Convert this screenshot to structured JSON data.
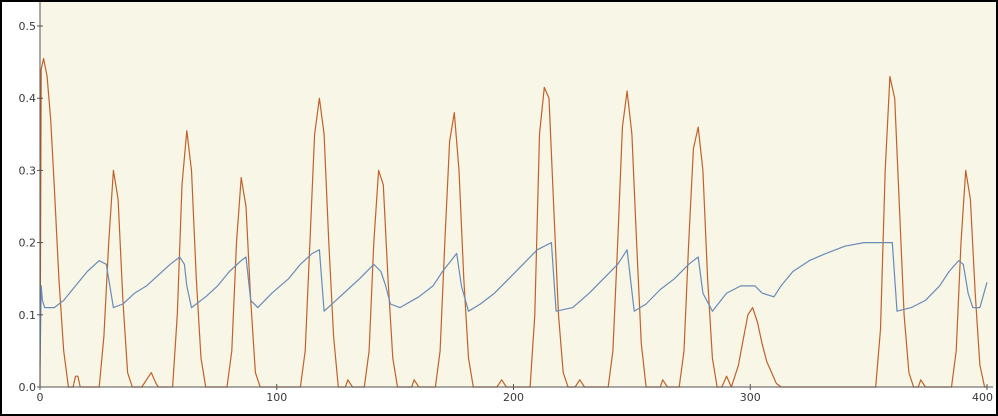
{
  "colors": {
    "plot_background": "#f8f6e6",
    "axis": "#555555",
    "tick_label": "#3a3a3a"
  },
  "chart_data": {
    "type": "line",
    "title": "",
    "xlabel": "",
    "ylabel": "",
    "xlim": [
      0,
      400
    ],
    "ylim": [
      0,
      0.5
    ],
    "x_ticks": [
      0,
      100,
      200,
      300,
      400
    ],
    "x_tick_labels": [
      "0",
      "100",
      "200",
      "300",
      "400"
    ],
    "y_ticks": [
      0.0,
      0.1,
      0.2,
      0.3,
      0.4,
      0.5
    ],
    "y_tick_labels": [
      "0.0",
      "0.1",
      "0.2",
      "0.3",
      "0.4",
      "0.5"
    ],
    "grid": false,
    "series": [
      {
        "color": "#c0622a",
        "points": [
          [
            0,
            0.0
          ],
          [
            0.5,
            0.44
          ],
          [
            1.5,
            0.455
          ],
          [
            3,
            0.43
          ],
          [
            4.5,
            0.37
          ],
          [
            6,
            0.28
          ],
          [
            8,
            0.15
          ],
          [
            10,
            0.05
          ],
          [
            12,
            0.0
          ],
          [
            14,
            0.0
          ],
          [
            15,
            0.015
          ],
          [
            16,
            0.015
          ],
          [
            17,
            0.0
          ],
          [
            25,
            0.0
          ],
          [
            27,
            0.07
          ],
          [
            29,
            0.2
          ],
          [
            31,
            0.3
          ],
          [
            33,
            0.26
          ],
          [
            35,
            0.12
          ],
          [
            37,
            0.02
          ],
          [
            39,
            0.0
          ],
          [
            43,
            0.0
          ],
          [
            45,
            0.01
          ],
          [
            47,
            0.02
          ],
          [
            49,
            0.005
          ],
          [
            50,
            0.0
          ],
          [
            56,
            0.0
          ],
          [
            58,
            0.1
          ],
          [
            60,
            0.28
          ],
          [
            62,
            0.355
          ],
          [
            64,
            0.3
          ],
          [
            66,
            0.15
          ],
          [
            68,
            0.04
          ],
          [
            70,
            0.0
          ],
          [
            79,
            0.0
          ],
          [
            81,
            0.05
          ],
          [
            83,
            0.2
          ],
          [
            85,
            0.29
          ],
          [
            87,
            0.25
          ],
          [
            89,
            0.12
          ],
          [
            91,
            0.02
          ],
          [
            93,
            0.0
          ],
          [
            110,
            0.0
          ],
          [
            112,
            0.05
          ],
          [
            114,
            0.2
          ],
          [
            116,
            0.35
          ],
          [
            118,
            0.4
          ],
          [
            120,
            0.35
          ],
          [
            122,
            0.2
          ],
          [
            124,
            0.07
          ],
          [
            126,
            0.0
          ],
          [
            129,
            0.0
          ],
          [
            130,
            0.01
          ],
          [
            132,
            0.0
          ],
          [
            137,
            0.0
          ],
          [
            139,
            0.05
          ],
          [
            141,
            0.2
          ],
          [
            143,
            0.3
          ],
          [
            145,
            0.28
          ],
          [
            147,
            0.15
          ],
          [
            149,
            0.04
          ],
          [
            151,
            0.0
          ],
          [
            157,
            0.0
          ],
          [
            158,
            0.01
          ],
          [
            160,
            0.0
          ],
          [
            167,
            0.0
          ],
          [
            169,
            0.05
          ],
          [
            171,
            0.2
          ],
          [
            173,
            0.34
          ],
          [
            175,
            0.38
          ],
          [
            177,
            0.3
          ],
          [
            179,
            0.15
          ],
          [
            181,
            0.04
          ],
          [
            183,
            0.0
          ],
          [
            193,
            0.0
          ],
          [
            195,
            0.01
          ],
          [
            197,
            0.0
          ],
          [
            207,
            0.0
          ],
          [
            209,
            0.1
          ],
          [
            211,
            0.35
          ],
          [
            213,
            0.415
          ],
          [
            215,
            0.4
          ],
          [
            217,
            0.25
          ],
          [
            219,
            0.1
          ],
          [
            221,
            0.02
          ],
          [
            223,
            0.0
          ],
          [
            226,
            0.0
          ],
          [
            228,
            0.01
          ],
          [
            230,
            0.0
          ],
          [
            240,
            0.0
          ],
          [
            242,
            0.05
          ],
          [
            244,
            0.2
          ],
          [
            246,
            0.36
          ],
          [
            248,
            0.41
          ],
          [
            250,
            0.35
          ],
          [
            252,
            0.2
          ],
          [
            254,
            0.06
          ],
          [
            256,
            0.0
          ],
          [
            262,
            0.0
          ],
          [
            263,
            0.01
          ],
          [
            265,
            0.0
          ],
          [
            270,
            0.0
          ],
          [
            272,
            0.05
          ],
          [
            274,
            0.2
          ],
          [
            276,
            0.33
          ],
          [
            278,
            0.36
          ],
          [
            280,
            0.3
          ],
          [
            282,
            0.15
          ],
          [
            284,
            0.04
          ],
          [
            286,
            0.0
          ],
          [
            288,
            0.0
          ],
          [
            290,
            0.015
          ],
          [
            292,
            0.0
          ],
          [
            293,
            0.01
          ],
          [
            295,
            0.03
          ],
          [
            297,
            0.065
          ],
          [
            299,
            0.1
          ],
          [
            301,
            0.11
          ],
          [
            303,
            0.09
          ],
          [
            305,
            0.06
          ],
          [
            307,
            0.035
          ],
          [
            309,
            0.02
          ],
          [
            311,
            0.005
          ],
          [
            313,
            0.0
          ],
          [
            353,
            0.0
          ],
          [
            355,
            0.08
          ],
          [
            357,
            0.3
          ],
          [
            359,
            0.43
          ],
          [
            361,
            0.4
          ],
          [
            363,
            0.25
          ],
          [
            365,
            0.1
          ],
          [
            367,
            0.02
          ],
          [
            369,
            0.0
          ],
          [
            371,
            0.0
          ],
          [
            372,
            0.01
          ],
          [
            374,
            0.0
          ],
          [
            385,
            0.0
          ],
          [
            387,
            0.05
          ],
          [
            389,
            0.2
          ],
          [
            391,
            0.3
          ],
          [
            393,
            0.26
          ],
          [
            395,
            0.13
          ],
          [
            397,
            0.03
          ],
          [
            399,
            0.0
          ],
          [
            400,
            0.0
          ]
        ]
      },
      {
        "color": "#6a8bb8",
        "points": [
          [
            0,
            0.03
          ],
          [
            0.5,
            0.14
          ],
          [
            1,
            0.12
          ],
          [
            2,
            0.11
          ],
          [
            6,
            0.11
          ],
          [
            10,
            0.12
          ],
          [
            15,
            0.14
          ],
          [
            20,
            0.16
          ],
          [
            25,
            0.175
          ],
          [
            28,
            0.17
          ],
          [
            31,
            0.11
          ],
          [
            35,
            0.115
          ],
          [
            40,
            0.13
          ],
          [
            45,
            0.14
          ],
          [
            50,
            0.155
          ],
          [
            55,
            0.17
          ],
          [
            59,
            0.18
          ],
          [
            61,
            0.17
          ],
          [
            62,
            0.14
          ],
          [
            64,
            0.11
          ],
          [
            70,
            0.125
          ],
          [
            75,
            0.14
          ],
          [
            80,
            0.16
          ],
          [
            85,
            0.175
          ],
          [
            87,
            0.18
          ],
          [
            89,
            0.12
          ],
          [
            92,
            0.11
          ],
          [
            98,
            0.13
          ],
          [
            105,
            0.15
          ],
          [
            110,
            0.17
          ],
          [
            115,
            0.185
          ],
          [
            118,
            0.19
          ],
          [
            120,
            0.105
          ],
          [
            125,
            0.12
          ],
          [
            130,
            0.135
          ],
          [
            135,
            0.15
          ],
          [
            141,
            0.17
          ],
          [
            144,
            0.16
          ],
          [
            146,
            0.14
          ],
          [
            148,
            0.115
          ],
          [
            152,
            0.11
          ],
          [
            160,
            0.125
          ],
          [
            166,
            0.14
          ],
          [
            170,
            0.16
          ],
          [
            176,
            0.185
          ],
          [
            178,
            0.14
          ],
          [
            181,
            0.105
          ],
          [
            186,
            0.115
          ],
          [
            192,
            0.13
          ],
          [
            198,
            0.15
          ],
          [
            204,
            0.17
          ],
          [
            210,
            0.19
          ],
          [
            216,
            0.2
          ],
          [
            218,
            0.105
          ],
          [
            225,
            0.11
          ],
          [
            232,
            0.13
          ],
          [
            238,
            0.15
          ],
          [
            244,
            0.17
          ],
          [
            248,
            0.19
          ],
          [
            251,
            0.105
          ],
          [
            256,
            0.115
          ],
          [
            262,
            0.135
          ],
          [
            268,
            0.15
          ],
          [
            274,
            0.17
          ],
          [
            278,
            0.18
          ],
          [
            280,
            0.13
          ],
          [
            284,
            0.105
          ],
          [
            290,
            0.13
          ],
          [
            296,
            0.14
          ],
          [
            302,
            0.14
          ],
          [
            305,
            0.13
          ],
          [
            310,
            0.125
          ],
          [
            313,
            0.14
          ],
          [
            318,
            0.16
          ],
          [
            325,
            0.175
          ],
          [
            332,
            0.185
          ],
          [
            340,
            0.195
          ],
          [
            348,
            0.2
          ],
          [
            354,
            0.2
          ],
          [
            360,
            0.2
          ],
          [
            362,
            0.105
          ],
          [
            368,
            0.11
          ],
          [
            374,
            0.12
          ],
          [
            380,
            0.14
          ],
          [
            384,
            0.16
          ],
          [
            388,
            0.175
          ],
          [
            390,
            0.17
          ],
          [
            392,
            0.13
          ],
          [
            394,
            0.11
          ],
          [
            397,
            0.11
          ],
          [
            400,
            0.145
          ]
        ]
      }
    ]
  }
}
